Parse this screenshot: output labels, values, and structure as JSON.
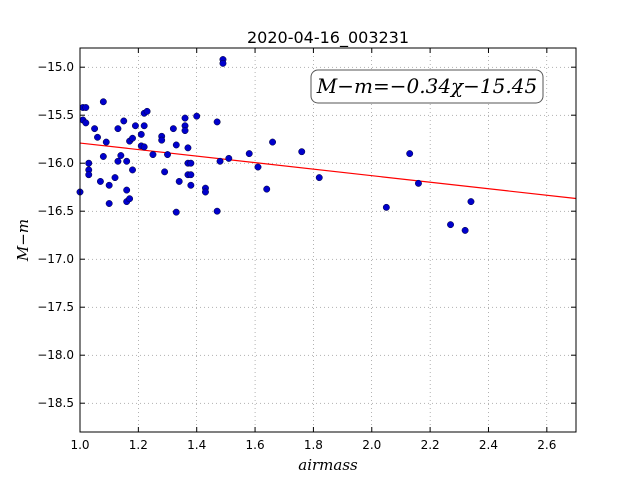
{
  "chart_data": {
    "type": "scatter",
    "title": "2020-04-16_003231",
    "xlabel": "airmass",
    "ylabel": "M−m",
    "xlim": [
      1.0,
      2.7
    ],
    "ylim": [
      -18.8,
      -14.8
    ],
    "x_ticks": [
      "1.0",
      "1.2",
      "1.4",
      "1.6",
      "1.8",
      "2.0",
      "2.2",
      "2.4",
      "2.6"
    ],
    "y_ticks": [
      "−15.0",
      "−15.5",
      "−16.0",
      "−16.5",
      "−17.0",
      "−17.5",
      "−18.0",
      "−18.5"
    ],
    "x_tick_values": [
      1.0,
      1.2,
      1.4,
      1.6,
      1.8,
      2.0,
      2.2,
      2.4,
      2.6
    ],
    "y_tick_values": [
      -15.0,
      -15.5,
      -16.0,
      -16.5,
      -17.0,
      -17.5,
      -18.0,
      -18.5
    ],
    "grid": true,
    "annotation": "M−m=−0.34χ−15.45",
    "fit_line": {
      "slope": -0.34,
      "intercept": -15.45,
      "color": "#ff0000"
    },
    "marker_color": "#0000cc",
    "points": [
      [
        1.0,
        -16.3
      ],
      [
        1.01,
        -15.42
      ],
      [
        1.01,
        -15.55
      ],
      [
        1.02,
        -15.42
      ],
      [
        1.02,
        -15.58
      ],
      [
        1.03,
        -16.0
      ],
      [
        1.03,
        -16.07
      ],
      [
        1.03,
        -16.12
      ],
      [
        1.05,
        -15.64
      ],
      [
        1.06,
        -15.73
      ],
      [
        1.07,
        -16.19
      ],
      [
        1.08,
        -15.93
      ],
      [
        1.08,
        -15.36
      ],
      [
        1.09,
        -15.78
      ],
      [
        1.1,
        -16.42
      ],
      [
        1.1,
        -16.23
      ],
      [
        1.12,
        -16.15
      ],
      [
        1.13,
        -15.64
      ],
      [
        1.13,
        -15.98
      ],
      [
        1.14,
        -15.92
      ],
      [
        1.15,
        -15.56
      ],
      [
        1.16,
        -15.98
      ],
      [
        1.16,
        -16.28
      ],
      [
        1.16,
        -16.4
      ],
      [
        1.17,
        -16.37
      ],
      [
        1.17,
        -15.77
      ],
      [
        1.18,
        -15.74
      ],
      [
        1.18,
        -16.07
      ],
      [
        1.19,
        -15.61
      ],
      [
        1.21,
        -15.7
      ],
      [
        1.21,
        -15.82
      ],
      [
        1.22,
        -15.83
      ],
      [
        1.22,
        -15.48
      ],
      [
        1.22,
        -15.61
      ],
      [
        1.23,
        -15.46
      ],
      [
        1.25,
        -15.91
      ],
      [
        1.28,
        -15.72
      ],
      [
        1.28,
        -15.76
      ],
      [
        1.29,
        -16.09
      ],
      [
        1.3,
        -15.91
      ],
      [
        1.32,
        -15.64
      ],
      [
        1.33,
        -15.81
      ],
      [
        1.33,
        -16.51
      ],
      [
        1.34,
        -16.19
      ],
      [
        1.36,
        -15.53
      ],
      [
        1.36,
        -15.61
      ],
      [
        1.36,
        -15.66
      ],
      [
        1.37,
        -16.0
      ],
      [
        1.37,
        -16.12
      ],
      [
        1.37,
        -15.84
      ],
      [
        1.38,
        -16.0
      ],
      [
        1.38,
        -16.23
      ],
      [
        1.38,
        -16.12
      ],
      [
        1.4,
        -15.51
      ],
      [
        1.43,
        -16.26
      ],
      [
        1.43,
        -16.3
      ],
      [
        1.47,
        -15.57
      ],
      [
        1.47,
        -16.5
      ],
      [
        1.48,
        -15.98
      ],
      [
        1.49,
        -14.92
      ],
      [
        1.49,
        -14.96
      ],
      [
        1.51,
        -15.95
      ],
      [
        1.58,
        -15.9
      ],
      [
        1.61,
        -16.04
      ],
      [
        1.64,
        -16.27
      ],
      [
        1.66,
        -15.78
      ],
      [
        1.76,
        -15.88
      ],
      [
        1.82,
        -16.15
      ],
      [
        2.05,
        -16.46
      ],
      [
        2.13,
        -15.9
      ],
      [
        2.16,
        -16.21
      ],
      [
        2.27,
        -16.64
      ],
      [
        2.32,
        -16.7
      ],
      [
        2.34,
        -16.4
      ]
    ]
  }
}
